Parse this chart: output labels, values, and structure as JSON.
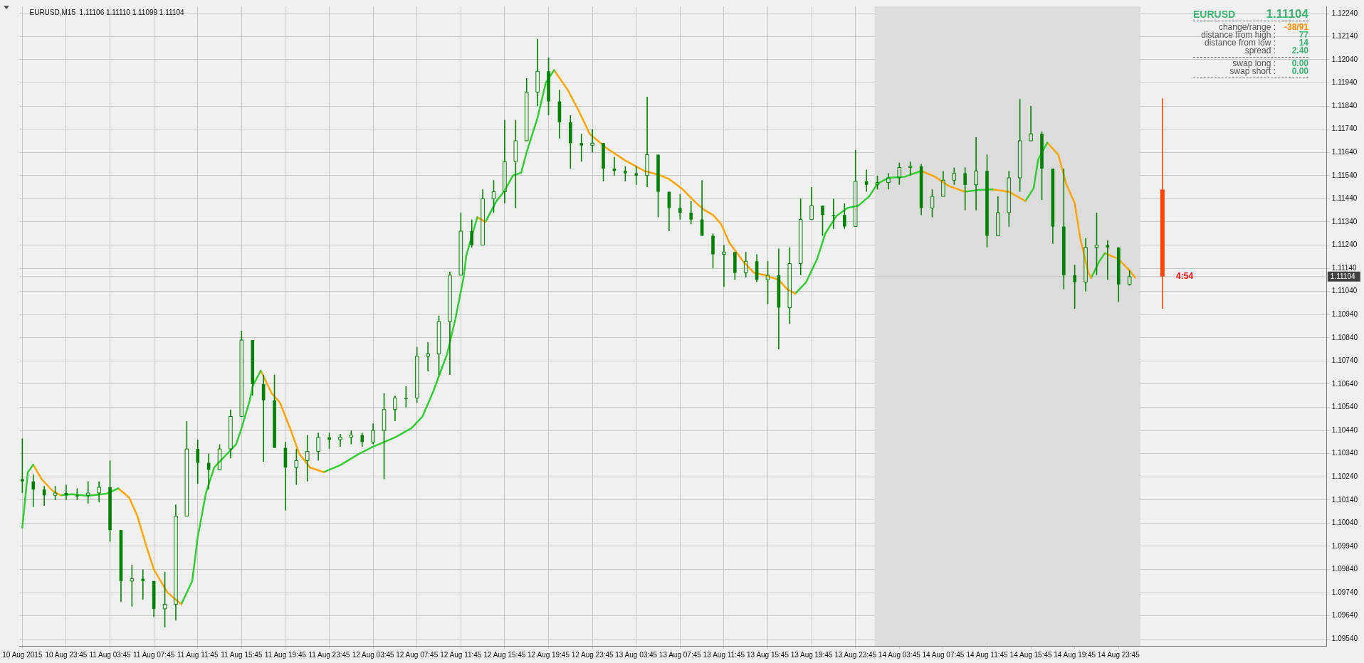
{
  "chart_data": {
    "type": "candlestick",
    "title": "EURUSD,M15  1.11106 1.11110 1.11099 1.11104",
    "xlim": [
      "2015-08-10T19:30",
      "2015-08-15T18:45"
    ],
    "ylim": [
      1.0951,
      1.1227
    ],
    "xticks": [
      {
        "value": "2015-08-10T19:45",
        "label": "10 Aug 2015"
      },
      {
        "value": "2015-08-10T23:45",
        "label": "10 Aug 23:45"
      },
      {
        "value": "2015-08-11T03:45",
        "label": "11 Aug 03:45"
      },
      {
        "value": "2015-08-11T07:45",
        "label": "11 Aug 07:45"
      },
      {
        "value": "2015-08-11T11:45",
        "label": "11 Aug 11:45"
      },
      {
        "value": "2015-08-11T15:45",
        "label": "11 Aug 15:45"
      },
      {
        "value": "2015-08-11T19:45",
        "label": "11 Aug 19:45"
      },
      {
        "value": "2015-08-11T23:45",
        "label": "11 Aug 23:45"
      },
      {
        "value": "2015-08-12T03:45",
        "label": "12 Aug 03:45"
      },
      {
        "value": "2015-08-12T07:45",
        "label": "12 Aug 07:45"
      },
      {
        "value": "2015-08-12T11:45",
        "label": "12 Aug 11:45"
      },
      {
        "value": "2015-08-12T15:45",
        "label": "12 Aug 15:45"
      },
      {
        "value": "2015-08-12T19:45",
        "label": "12 Aug 19:45"
      },
      {
        "value": "2015-08-12T23:45",
        "label": "12 Aug 23:45"
      },
      {
        "value": "2015-08-13T03:45",
        "label": "13 Aug 03:45"
      },
      {
        "value": "2015-08-13T07:45",
        "label": "13 Aug 07:45"
      },
      {
        "value": "2015-08-13T11:45",
        "label": "13 Aug 11:45"
      },
      {
        "value": "2015-08-13T15:45",
        "label": "13 Aug 15:45"
      },
      {
        "value": "2015-08-13T19:45",
        "label": "13 Aug 19:45"
      },
      {
        "value": "2015-08-13T23:45",
        "label": "13 Aug 23:45"
      },
      {
        "value": "2015-08-14T03:45",
        "label": "14 Aug 03:45"
      },
      {
        "value": "2015-08-14T07:45",
        "label": "14 Aug 07:45"
      },
      {
        "value": "2015-08-14T11:45",
        "label": "14 Aug 11:45"
      },
      {
        "value": "2015-08-14T15:45",
        "label": "14 Aug 15:45"
      },
      {
        "value": "2015-08-14T19:45",
        "label": "14 Aug 19:45"
      },
      {
        "value": "2015-08-14T23:45",
        "label": "14 Aug 23:45"
      }
    ],
    "yticks": [
      {
        "value": 1.0954,
        "label": "1.09540"
      },
      {
        "value": 1.0964,
        "label": "1.09640"
      },
      {
        "value": 1.0974,
        "label": "1.09740"
      },
      {
        "value": 1.0984,
        "label": "1.09840"
      },
      {
        "value": 1.0994,
        "label": "1.09940"
      },
      {
        "value": 1.1004,
        "label": "1.10040"
      },
      {
        "value": 1.1014,
        "label": "1.10140"
      },
      {
        "value": 1.1024,
        "label": "1.10240"
      },
      {
        "value": 1.1034,
        "label": "1.10340"
      },
      {
        "value": 1.1044,
        "label": "1.10440"
      },
      {
        "value": 1.1054,
        "label": "1.10540"
      },
      {
        "value": 1.1064,
        "label": "1.10640"
      },
      {
        "value": 1.1074,
        "label": "1.10740"
      },
      {
        "value": 1.1084,
        "label": "1.10840"
      },
      {
        "value": 1.1094,
        "label": "1.10940"
      },
      {
        "value": 1.1104,
        "label": "1.11040"
      },
      {
        "value": 1.1114,
        "label": "1.11140"
      },
      {
        "value": 1.1124,
        "label": "1.11240"
      },
      {
        "value": 1.1134,
        "label": "1.11340"
      },
      {
        "value": 1.1144,
        "label": "1.11440"
      },
      {
        "value": 1.1154,
        "label": "1.11540"
      },
      {
        "value": 1.1164,
        "label": "1.11640"
      },
      {
        "value": 1.1174,
        "label": "1.11740"
      },
      {
        "value": 1.1184,
        "label": "1.11840"
      },
      {
        "value": 1.1194,
        "label": "1.11940"
      },
      {
        "value": 1.1204,
        "label": "1.12040"
      },
      {
        "value": 1.1214,
        "label": "1.12140"
      },
      {
        "value": 1.1224,
        "label": "1.12240"
      }
    ],
    "grid": true,
    "legend": false,
    "bands": [
      {
        "axis": "x",
        "from": "2015-08-14T01:30",
        "to": "2015-08-15T01:45",
        "color": "#dcdcdc"
      }
    ],
    "ref_lines": [
      {
        "axis": "y",
        "value": 1.11104,
        "label": "1.11104",
        "color": "#c8c8c8"
      }
    ],
    "annotations": [
      "EURUSD",
      "1.11104",
      "change/range :",
      "-38/91",
      "distance from high :",
      "77",
      "distance from low :",
      "14",
      "spread :",
      "2.40",
      "swap long :",
      "0.00",
      "swap short :",
      "0.00",
      {
        "text": "4:54",
        "x": "2015-08-15T05:00",
        "y": 1.11104
      }
    ],
    "series": [
      {
        "color": "#008000",
        "x": [
          "2015-08-10T19:45",
          "2015-08-10T20:45",
          "2015-08-10T21:45",
          "2015-08-10T22:45",
          "2015-08-10T23:45",
          "2015-08-11T00:45",
          "2015-08-11T01:45",
          "2015-08-11T02:45",
          "2015-08-11T03:45",
          "2015-08-11T04:45",
          "2015-08-11T05:45",
          "2015-08-11T06:45",
          "2015-08-11T07:45",
          "2015-08-11T08:45",
          "2015-08-11T09:45",
          "2015-08-11T10:45",
          "2015-08-11T11:45",
          "2015-08-11T12:45",
          "2015-08-11T13:45",
          "2015-08-11T14:45",
          "2015-08-11T15:45",
          "2015-08-11T16:45",
          "2015-08-11T17:45",
          "2015-08-11T18:45",
          "2015-08-11T19:45",
          "2015-08-11T20:45",
          "2015-08-11T21:45",
          "2015-08-11T22:45",
          "2015-08-11T23:45",
          "2015-08-12T00:45",
          "2015-08-12T01:45",
          "2015-08-12T02:45",
          "2015-08-12T03:45",
          "2015-08-12T04:45",
          "2015-08-12T05:45",
          "2015-08-12T06:45",
          "2015-08-12T07:45",
          "2015-08-12T08:45",
          "2015-08-12T09:45",
          "2015-08-12T10:45",
          "2015-08-12T11:45",
          "2015-08-12T12:45",
          "2015-08-12T13:45",
          "2015-08-12T14:45",
          "2015-08-12T15:45",
          "2015-08-12T16:45",
          "2015-08-12T17:45",
          "2015-08-12T18:45",
          "2015-08-12T19:45",
          "2015-08-12T20:45",
          "2015-08-12T21:45",
          "2015-08-12T22:45",
          "2015-08-12T23:45",
          "2015-08-13T00:45",
          "2015-08-13T01:45",
          "2015-08-13T02:45",
          "2015-08-13T03:45",
          "2015-08-13T04:45",
          "2015-08-13T05:45",
          "2015-08-13T06:45",
          "2015-08-13T07:45",
          "2015-08-13T08:45",
          "2015-08-13T09:45",
          "2015-08-13T10:45",
          "2015-08-13T11:45",
          "2015-08-13T12:45",
          "2015-08-13T13:45",
          "2015-08-13T14:45",
          "2015-08-13T15:45",
          "2015-08-13T16:45",
          "2015-08-13T17:45",
          "2015-08-13T18:45",
          "2015-08-13T19:45",
          "2015-08-13T20:45",
          "2015-08-13T21:45",
          "2015-08-13T22:45",
          "2015-08-13T23:45",
          "2015-08-14T00:45",
          "2015-08-14T01:45",
          "2015-08-14T02:45",
          "2015-08-14T03:45",
          "2015-08-14T04:45",
          "2015-08-14T05:45",
          "2015-08-14T06:45",
          "2015-08-14T07:45",
          "2015-08-14T08:45",
          "2015-08-14T09:45",
          "2015-08-14T10:45",
          "2015-08-14T11:45",
          "2015-08-14T12:45",
          "2015-08-14T13:45",
          "2015-08-14T14:45",
          "2015-08-14T15:45",
          "2015-08-14T16:45",
          "2015-08-14T17:45",
          "2015-08-14T18:45",
          "2015-08-14T19:45",
          "2015-08-14T20:45",
          "2015-08-14T21:45",
          "2015-08-14T22:45",
          "2015-08-14T23:45",
          "2015-08-15T00:45"
        ],
        "ohlc": [
          [
            1.1023,
            1.10405,
            1.1017,
            1.1022
          ],
          [
            1.1022,
            1.1025,
            1.1011,
            1.10185
          ],
          [
            1.10185,
            1.102,
            1.10115,
            1.1016
          ],
          [
            1.1016,
            1.102,
            1.1014,
            1.1017
          ],
          [
            1.1017,
            1.10205,
            1.1014,
            1.1016
          ],
          [
            1.1016,
            1.1019,
            1.1014,
            1.1016
          ],
          [
            1.1016,
            1.1022,
            1.10125,
            1.1017
          ],
          [
            1.1017,
            1.1022,
            1.1013,
            1.10195
          ],
          [
            1.10195,
            1.1031,
            1.0996,
            1.1001
          ],
          [
            1.1001,
            1.1001,
            1.097,
            1.0979
          ],
          [
            1.0979,
            1.0986,
            1.0968,
            1.098
          ],
          [
            1.098,
            1.0984,
            1.0971,
            1.0979
          ],
          [
            1.0979,
            1.0979,
            1.09635,
            1.0967
          ],
          [
            1.0967,
            1.0983,
            1.0959,
            1.0969
          ],
          [
            1.0969,
            1.1012,
            1.0962,
            1.1007
          ],
          [
            1.1007,
            1.1048,
            1.1007,
            1.1036
          ],
          [
            1.1036,
            1.104,
            1.1021,
            1.103
          ],
          [
            1.103,
            1.1034,
            1.10185,
            1.1027
          ],
          [
            1.1027,
            1.1038,
            1.1027,
            1.1036
          ],
          [
            1.1036,
            1.1053,
            1.1032,
            1.105
          ],
          [
            1.105,
            1.1087,
            1.105,
            1.1083
          ],
          [
            1.1083,
            1.1083,
            1.1059,
            1.1064
          ],
          [
            1.1064,
            1.1068,
            1.10305,
            1.1057
          ],
          [
            1.1057,
            1.1068,
            1.10365,
            1.10365
          ],
          [
            1.10365,
            1.1039,
            1.10095,
            1.1028
          ],
          [
            1.1028,
            1.1036,
            1.10205,
            1.1031
          ],
          [
            1.1031,
            1.1042,
            1.1022,
            1.1035
          ],
          [
            1.1035,
            1.1043,
            1.1031,
            1.1041
          ],
          [
            1.1041,
            1.1043,
            1.1036,
            1.104
          ],
          [
            1.104,
            1.10425,
            1.1037,
            1.1041
          ],
          [
            1.1041,
            1.1044,
            1.1038,
            1.1042
          ],
          [
            1.1042,
            1.1043,
            1.1037,
            1.1039
          ],
          [
            1.1039,
            1.1047,
            1.1038,
            1.1044
          ],
          [
            1.1044,
            1.106,
            1.1023,
            1.1053
          ],
          [
            1.1053,
            1.1059,
            1.1048,
            1.1058
          ],
          [
            1.1058,
            1.1063,
            1.1054,
            1.1058
          ],
          [
            1.1058,
            1.108,
            1.1056,
            1.1076
          ],
          [
            1.1076,
            1.1082,
            1.10695,
            1.1077
          ],
          [
            1.1077,
            1.10935,
            1.1068,
            1.1091
          ],
          [
            1.1091,
            1.11125,
            1.1068,
            1.1111
          ],
          [
            1.1111,
            1.1138,
            1.1111,
            1.113
          ],
          [
            1.113,
            1.1135,
            1.1123,
            1.1124
          ],
          [
            1.1124,
            1.1148,
            1.1124,
            1.1144
          ],
          [
            1.1144,
            1.1152,
            1.1138,
            1.1147
          ],
          [
            1.1147,
            1.1178,
            1.1142,
            1.116
          ],
          [
            1.116,
            1.1178,
            1.114,
            1.1169
          ],
          [
            1.1169,
            1.1196,
            1.1169,
            1.119
          ],
          [
            1.119,
            1.1213,
            1.1184,
            1.1199
          ],
          [
            1.1199,
            1.1205,
            1.118,
            1.1186
          ],
          [
            1.1186,
            1.1191,
            1.117,
            1.1177
          ],
          [
            1.1177,
            1.118,
            1.1157,
            1.1168
          ],
          [
            1.1168,
            1.1172,
            1.116,
            1.1167
          ],
          [
            1.1167,
            1.1174,
            1.1164,
            1.1168
          ],
          [
            1.1168,
            1.1168,
            1.11515,
            1.1157
          ],
          [
            1.1157,
            1.1162,
            1.1154,
            1.1156
          ],
          [
            1.1156,
            1.1158,
            1.11515,
            1.1155
          ],
          [
            1.1155,
            1.1158,
            1.115,
            1.1154
          ],
          [
            1.1154,
            1.1188,
            1.1149,
            1.1163
          ],
          [
            1.1163,
            1.1163,
            1.1136,
            1.1147
          ],
          [
            1.1147,
            1.1147,
            1.113,
            1.114
          ],
          [
            1.114,
            1.1146,
            1.1135,
            1.1138
          ],
          [
            1.1138,
            1.1143,
            1.1133,
            1.1135
          ],
          [
            1.1135,
            1.1152,
            1.1128,
            1.1128
          ],
          [
            1.1128,
            1.1129,
            1.1114,
            1.112
          ],
          [
            1.112,
            1.1124,
            1.1106,
            1.1121
          ],
          [
            1.1121,
            1.1121,
            1.1109,
            1.1112
          ],
          [
            1.1112,
            1.1121,
            1.111,
            1.1117
          ],
          [
            1.1117,
            1.112,
            1.1108,
            1.1109
          ],
          [
            1.1109,
            1.1117,
            1.10985,
            1.1111
          ],
          [
            1.1111,
            1.11225,
            1.1079,
            1.1097
          ],
          [
            1.1097,
            1.1123,
            1.109,
            1.1116
          ],
          [
            1.1116,
            1.1144,
            1.1111,
            1.1135
          ],
          [
            1.1135,
            1.1149,
            1.1135,
            1.1141
          ],
          [
            1.1141,
            1.1141,
            1.1128,
            1.1137
          ],
          [
            1.1137,
            1.1144,
            1.1131,
            1.1137
          ],
          [
            1.1137,
            1.1142,
            1.1131,
            1.1132
          ],
          [
            1.1132,
            1.1165,
            1.1132,
            1.11515
          ],
          [
            1.11515,
            1.11565,
            1.1147,
            1.115
          ],
          [
            1.115,
            1.1154,
            1.1148,
            1.1151
          ],
          [
            1.1151,
            1.1155,
            1.1148,
            1.1153
          ],
          [
            1.1153,
            1.11595,
            1.115,
            1.11575
          ],
          [
            1.11575,
            1.116,
            1.1154,
            1.1158
          ],
          [
            1.1158,
            1.1159,
            1.1137,
            1.114
          ],
          [
            1.114,
            1.1148,
            1.1136,
            1.1145
          ],
          [
            1.1145,
            1.1156,
            1.1145,
            1.1152
          ],
          [
            1.1152,
            1.11575,
            1.115,
            1.1155
          ],
          [
            1.1155,
            1.11575,
            1.1139,
            1.115
          ],
          [
            1.115,
            1.11705,
            1.1139,
            1.1156
          ],
          [
            1.1156,
            1.1163,
            1.1123,
            1.1128
          ],
          [
            1.1128,
            1.1145,
            1.1128,
            1.1138
          ],
          [
            1.1138,
            1.1156,
            1.1132,
            1.1153
          ],
          [
            1.1153,
            1.1187,
            1.1147,
            1.1169
          ],
          [
            1.1169,
            1.1184,
            1.1169,
            1.1172
          ],
          [
            1.1172,
            1.1173,
            1.11435,
            1.1157
          ],
          [
            1.1157,
            1.1157,
            1.11245,
            1.1132
          ],
          [
            1.1132,
            1.1157,
            1.1105,
            1.1111
          ],
          [
            1.1111,
            1.11155,
            1.10965,
            1.1108
          ],
          [
            1.1108,
            1.1127,
            1.1104,
            1.1123
          ],
          [
            1.1123,
            1.1138,
            1.1111,
            1.1124
          ],
          [
            1.1124,
            1.1126,
            1.1109,
            1.1123
          ],
          [
            1.1123,
            1.1123,
            1.10995,
            1.1107
          ],
          [
            1.1107,
            1.1113,
            1.11065,
            1.11104
          ]
        ]
      },
      {
        "color": "#ff4500",
        "x": [
          "2015-08-15T03:45"
        ],
        "ohlc": [
          [
            1.1148,
            1.11873,
            1.10965,
            1.11104
          ]
        ]
      },
      {
        "type": "line",
        "color": "#32cd32",
        "x": [
          "2015-08-10T19:45",
          "2015-08-10T20:15",
          "2015-08-10T20:45"
        ],
        "values": [
          1.1002,
          1.1026,
          1.10292
        ]
      },
      {
        "type": "line",
        "color": "#ffa500",
        "x": [
          "2015-08-10T20:45",
          "2015-08-10T21:30",
          "2015-08-10T22:30",
          "2015-08-10T23:15"
        ],
        "values": [
          1.10292,
          1.1023,
          1.1018,
          1.1016
        ]
      },
      {
        "type": "line",
        "color": "#32cd32",
        "x": [
          "2015-08-10T23:15",
          "2015-08-11T00:15",
          "2015-08-11T01:45",
          "2015-08-11T03:30",
          "2015-08-11T04:30"
        ],
        "values": [
          1.1016,
          1.10165,
          1.10158,
          1.10168,
          1.1019
        ]
      },
      {
        "type": "line",
        "color": "#ffa500",
        "x": [
          "2015-08-11T04:30",
          "2015-08-11T05:30",
          "2015-08-11T06:15",
          "2015-08-11T07:00",
          "2015-08-11T07:45",
          "2015-08-11T09:00",
          "2015-08-11T10:15"
        ],
        "values": [
          1.1019,
          1.1015,
          1.1007,
          1.0995,
          1.0984,
          1.0974,
          1.0969
        ]
      },
      {
        "type": "line",
        "color": "#32cd32",
        "x": [
          "2015-08-11T10:15",
          "2015-08-11T11:15",
          "2015-08-11T11:45",
          "2015-08-11T12:30",
          "2015-08-11T13:15",
          "2015-08-11T14:15",
          "2015-08-11T15:15",
          "2015-08-11T15:45",
          "2015-08-11T16:30",
          "2015-08-11T16:45",
          "2015-08-11T17:30"
        ],
        "values": [
          1.0969,
          1.0979,
          1.0998,
          1.1017,
          1.1028,
          1.1033,
          1.1038,
          1.1045,
          1.1057,
          1.1063,
          1.10698
        ]
      },
      {
        "type": "line",
        "color": "#ffa500",
        "x": [
          "2015-08-11T17:30",
          "2015-08-11T18:30",
          "2015-08-11T19:15",
          "2015-08-11T20:15",
          "2015-08-11T21:00",
          "2015-08-11T22:00",
          "2015-08-11T23:15"
        ],
        "values": [
          1.10698,
          1.106,
          1.1056,
          1.1044,
          1.1034,
          1.1028,
          1.1026
        ]
      },
      {
        "type": "line",
        "color": "#32cd32",
        "x": [
          "2015-08-11T23:15",
          "2015-08-12T00:45",
          "2015-08-12T02:30",
          "2015-08-12T03:45",
          "2015-08-12T05:45",
          "2015-08-12T07:15",
          "2015-08-12T08:15",
          "2015-08-12T09:15",
          "2015-08-12T10:30",
          "2015-08-12T11:15",
          "2015-08-12T12:00",
          "2015-08-12T12:15",
          "2015-08-12T13:15"
        ],
        "values": [
          1.1026,
          1.1029,
          1.1034,
          1.1037,
          1.1041,
          1.1045,
          1.105,
          1.1061,
          1.1077,
          1.1092,
          1.111,
          1.11195,
          1.1136
        ]
      },
      {
        "type": "line",
        "color": "#ffa500",
        "x": [
          "2015-08-12T13:15",
          "2015-08-12T14:00"
        ],
        "values": [
          1.1136,
          1.1134
        ]
      },
      {
        "type": "line",
        "color": "#32cd32",
        "x": [
          "2015-08-12T14:00",
          "2015-08-12T15:00",
          "2015-08-12T15:45",
          "2015-08-12T16:30",
          "2015-08-12T17:15",
          "2015-08-12T17:45",
          "2015-08-12T18:45",
          "2015-08-12T19:30",
          "2015-08-12T20:15"
        ],
        "values": [
          1.1134,
          1.1143,
          1.11475,
          1.1154,
          1.11552,
          1.1164,
          1.1179,
          1.1194,
          1.11995
        ]
      },
      {
        "type": "line",
        "color": "#ffa500",
        "x": [
          "2015-08-12T20:15",
          "2015-08-12T21:30",
          "2015-08-12T22:30",
          "2015-08-12T23:30",
          "2015-08-13T01:00",
          "2015-08-13T02:45",
          "2015-08-13T04:30",
          "2015-08-13T06:00",
          "2015-08-13T06:45",
          "2015-08-13T08:00",
          "2015-08-13T09:15",
          "2015-08-13T10:00",
          "2015-08-13T10:45",
          "2015-08-13T11:30",
          "2015-08-13T12:15",
          "2015-08-13T13:30",
          "2015-08-13T14:30",
          "2015-08-13T15:30",
          "2015-08-13T16:45",
          "2015-08-13T17:30",
          "2015-08-13T18:15"
        ],
        "values": [
          1.11995,
          1.1191,
          1.1182,
          1.1172,
          1.1166,
          1.11605,
          1.1156,
          1.1154,
          1.11525,
          1.1148,
          1.1142,
          1.1139,
          1.1137,
          1.1133,
          1.1125,
          1.1117,
          1.1112,
          1.1111,
          1.1109,
          1.1105,
          1.1103
        ]
      },
      {
        "type": "line",
        "color": "#32cd32",
        "x": [
          "2015-08-13T18:15",
          "2015-08-13T19:15",
          "2015-08-13T20:15",
          "2015-08-13T21:00",
          "2015-08-13T22:00",
          "2015-08-13T23:00",
          "2015-08-14T00:00",
          "2015-08-14T01:00",
          "2015-08-14T01:45",
          "2015-08-14T02:45",
          "2015-08-14T04:15",
          "2015-08-14T05:45"
        ],
        "values": [
          1.1103,
          1.1108,
          1.1118,
          1.1129,
          1.11365,
          1.114,
          1.1141,
          1.1145,
          1.11505,
          1.1153,
          1.11535,
          1.1156
        ]
      },
      {
        "type": "line",
        "color": "#ffa500",
        "x": [
          "2015-08-14T05:45",
          "2015-08-14T07:00",
          "2015-08-14T08:15",
          "2015-08-14T09:45"
        ],
        "values": [
          1.1156,
          1.11535,
          1.11495,
          1.1147
        ]
      },
      {
        "type": "line",
        "color": "#32cd32",
        "x": [
          "2015-08-14T09:45",
          "2015-08-14T11:00",
          "2015-08-14T12:15"
        ],
        "values": [
          1.1147,
          1.11478,
          1.1148
        ]
      },
      {
        "type": "line",
        "color": "#ffa500",
        "x": [
          "2015-08-14T12:15",
          "2015-08-14T13:45",
          "2015-08-14T15:15"
        ],
        "values": [
          1.1148,
          1.1147,
          1.1143
        ]
      },
      {
        "type": "line",
        "color": "#32cd32",
        "x": [
          "2015-08-14T15:15",
          "2015-08-14T16:00",
          "2015-08-14T16:25",
          "2015-08-14T17:15"
        ],
        "values": [
          1.1143,
          1.11485,
          1.1161,
          1.11682
        ]
      },
      {
        "type": "line",
        "color": "#ffa500",
        "x": [
          "2015-08-14T17:15",
          "2015-08-14T18:15",
          "2015-08-14T19:00",
          "2015-08-14T19:45",
          "2015-08-14T20:15",
          "2015-08-14T21:00",
          "2015-08-14T21:15"
        ],
        "values": [
          1.11682,
          1.1163,
          1.115,
          1.1142,
          1.1127,
          1.1112,
          1.11098
        ]
      },
      {
        "type": "line",
        "color": "#32cd32",
        "x": [
          "2015-08-14T21:15",
          "2015-08-14T22:00",
          "2015-08-14T22:30"
        ],
        "values": [
          1.11098,
          1.1117,
          1.11205
        ]
      },
      {
        "type": "line",
        "color": "#ffa500",
        "x": [
          "2015-08-14T22:30",
          "2015-08-14T23:45",
          "2015-08-15T00:45",
          "2015-08-15T01:15"
        ],
        "values": [
          1.11205,
          1.1118,
          1.1113,
          1.111
        ]
      }
    ]
  }
}
